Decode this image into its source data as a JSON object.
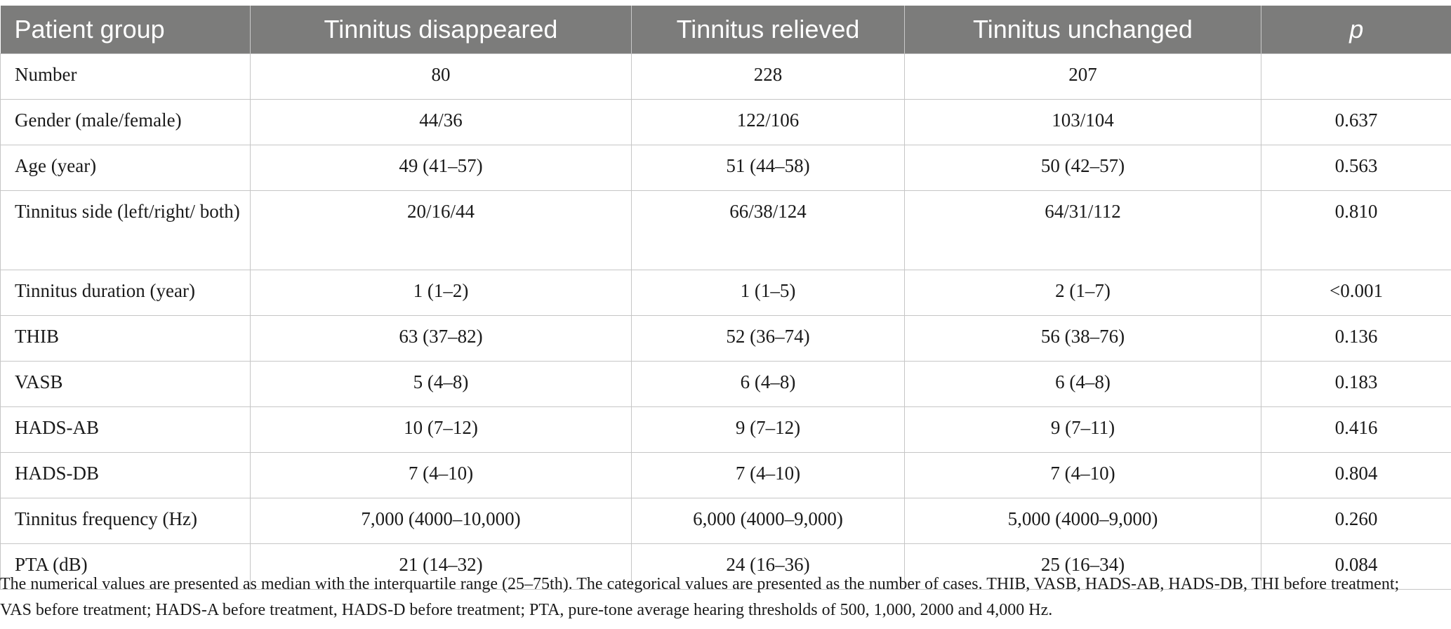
{
  "table": {
    "headers": [
      "Patient group",
      "Tinnitus disappeared",
      "Tinnitus relieved",
      "Tinnitus unchanged",
      "p"
    ],
    "rows": [
      {
        "label": "Number",
        "disappeared": "80",
        "relieved": "228",
        "unchanged": "207",
        "p": ""
      },
      {
        "label": "Gender (male/female)",
        "disappeared": "44/36",
        "relieved": "122/106",
        "unchanged": "103/104",
        "p": "0.637"
      },
      {
        "label": "Age (year)",
        "disappeared": "49 (41–57)",
        "relieved": "51 (44–58)",
        "unchanged": "50 (42–57)",
        "p": "0.563"
      },
      {
        "label": "Tinnitus side (left/right/ both)",
        "disappeared": "20/16/44",
        "relieved": "66/38/124",
        "unchanged": "64/31/112",
        "p": "0.810"
      },
      {
        "label": "Tinnitus duration (year)",
        "disappeared": "1 (1–2)",
        "relieved": "1 (1–5)",
        "unchanged": "2 (1–7)",
        "p": "<0.001"
      },
      {
        "label": "THIB",
        "disappeared": "63 (37–82)",
        "relieved": "52 (36–74)",
        "unchanged": "56 (38–76)",
        "p": "0.136"
      },
      {
        "label": "VASB",
        "disappeared": "5 (4–8)",
        "relieved": "6 (4–8)",
        "unchanged": "6 (4–8)",
        "p": "0.183"
      },
      {
        "label": "HADS-AB",
        "disappeared": "10 (7–12)",
        "relieved": "9 (7–12)",
        "unchanged": "9 (7–11)",
        "p": "0.416"
      },
      {
        "label": "HADS-DB",
        "disappeared": "7 (4–10)",
        "relieved": "7 (4–10)",
        "unchanged": "7 (4–10)",
        "p": "0.804"
      },
      {
        "label": "Tinnitus frequency (Hz)",
        "disappeared": "7,000 (4000–10,000)",
        "relieved": "6,000 (4000–9,000)",
        "unchanged": "5,000 (4000–9,000)",
        "p": "0.260"
      },
      {
        "label": "PTA (dB)",
        "disappeared": "21 (14–32)",
        "relieved": "24 (16–36)",
        "unchanged": "25 (16–34)",
        "p": "0.084"
      }
    ]
  },
  "footnote": "The numerical values are presented as median with the interquartile range (25–75th). The categorical values are presented as the number of cases. THIB, VASB, HADS-AB, HADS-DB, THI before treatment; VAS before treatment; HADS-A before treatment, HADS-D before treatment; PTA, pure-tone average hearing thresholds of 500, 1,000, 2000 and 4,000 Hz.",
  "colors": {
    "header_bg": "#7c7c7b",
    "header_text": "#ffffff",
    "grid": "#c6c6c6"
  }
}
